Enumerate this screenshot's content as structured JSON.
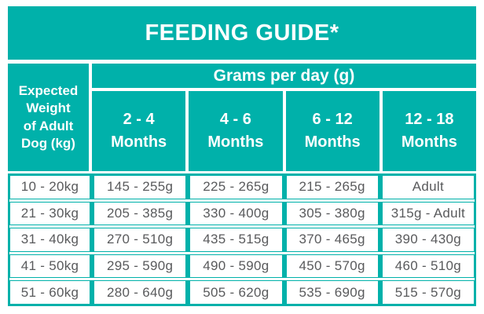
{
  "title": "FEEDING GUIDE*",
  "colors": {
    "teal": "#00b1aa",
    "header_text": "#ffffff",
    "cell_text": "#595a5c",
    "background": "#ffffff"
  },
  "header": {
    "weight_lines": [
      "Expected",
      "Weight",
      "of Adult",
      "Dog (kg)"
    ],
    "group": "Grams per day (g)",
    "months": [
      {
        "range": "2 - 4",
        "unit": "Months"
      },
      {
        "range": "4 - 6",
        "unit": "Months"
      },
      {
        "range": "6 - 12",
        "unit": "Months"
      },
      {
        "range": "12 - 18",
        "unit": "Months"
      }
    ]
  },
  "chart_data": {
    "type": "table",
    "title": "FEEDING GUIDE*",
    "group_header": "Grams per day (g)",
    "columns": [
      "Expected Weight of Adult Dog (kg)",
      "2 - 4 Months",
      "4 - 6 Months",
      "6 - 12 Months",
      "12 - 18 Months"
    ],
    "rows": [
      [
        "10 - 20kg",
        "145 - 255g",
        "225 - 265g",
        "215 - 265g",
        "Adult"
      ],
      [
        "21 - 30kg",
        "205 - 385g",
        "330 - 400g",
        "305 - 380g",
        "315g - Adult"
      ],
      [
        "31 - 40kg",
        "270 - 510g",
        "435 - 515g",
        "370 - 465g",
        "390 - 430g"
      ],
      [
        "41 - 50kg",
        "295 - 590g",
        "490 - 590g",
        "450 - 570g",
        "460 - 510g"
      ],
      [
        "51 - 60kg",
        "280 - 640g",
        "505 - 620g",
        "535 - 690g",
        "515 - 570g"
      ]
    ]
  }
}
